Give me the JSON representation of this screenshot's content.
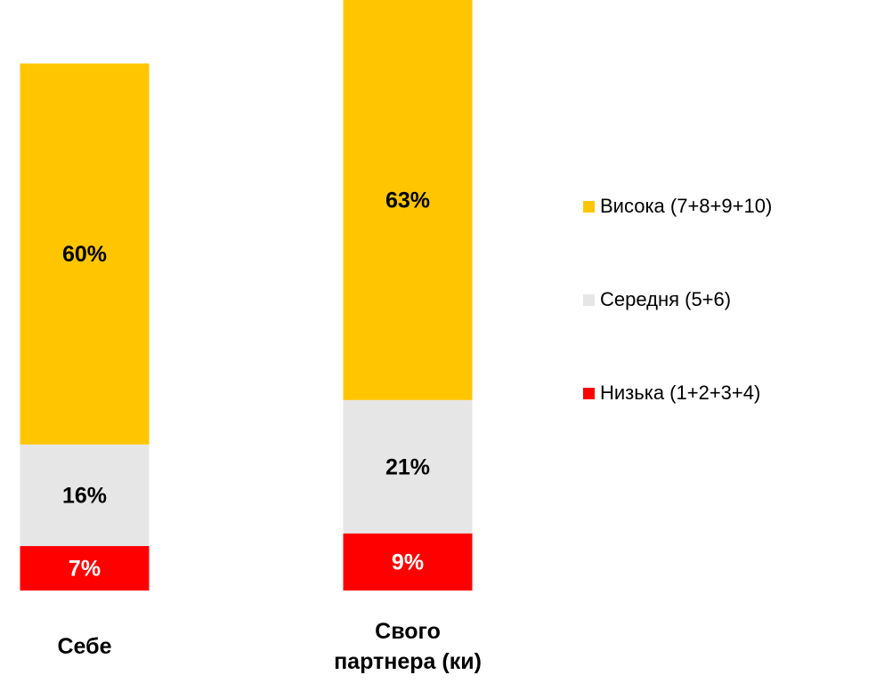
{
  "chart_data": {
    "type": "stacked_bar",
    "categories": [
      "Себе",
      "Свого\nпартнера (ки)"
    ],
    "series": [
      {
        "name": "Низька (1+2+3+4)",
        "color": "#ff0000",
        "values": [
          7,
          9
        ],
        "value_labels": [
          "7%",
          "9%"
        ]
      },
      {
        "name": "Середня (5+6)",
        "color": "#e6e6e6",
        "values": [
          16,
          21
        ],
        "value_labels": [
          "16%",
          "21%"
        ]
      },
      {
        "name": "Висока (7+8+9+10)",
        "color": "#ffc600",
        "values": [
          60,
          63
        ],
        "value_labels": [
          "60%",
          "63%"
        ]
      }
    ],
    "ylim": [
      0,
      93
    ],
    "legend": "right"
  }
}
